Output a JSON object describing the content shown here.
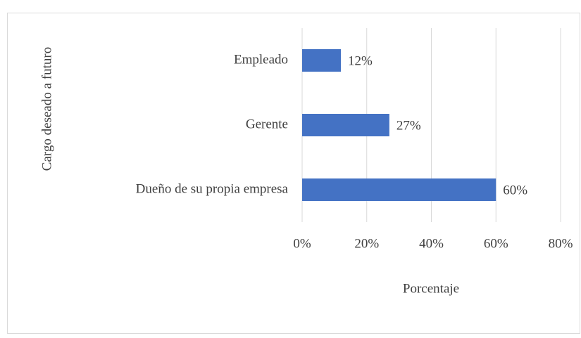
{
  "chart_data": {
    "type": "barh",
    "categories": [
      "Empleado",
      "Gerente",
      "Dueño de su propia empresa"
    ],
    "values": [
      12,
      27,
      60
    ],
    "value_labels": [
      "12%",
      "27%",
      "60%"
    ],
    "color": "#4472c4",
    "xlabel": "Porcentaje",
    "ylabel": "Cargo deseado a futuro",
    "xlim": [
      0,
      80
    ],
    "xticks": [
      {
        "value": 0,
        "label": "0%"
      },
      {
        "value": 20,
        "label": "20%"
      },
      {
        "value": 40,
        "label": "40%"
      },
      {
        "value": 60,
        "label": "60%"
      },
      {
        "value": 80,
        "label": "80%"
      }
    ],
    "grid": true
  }
}
